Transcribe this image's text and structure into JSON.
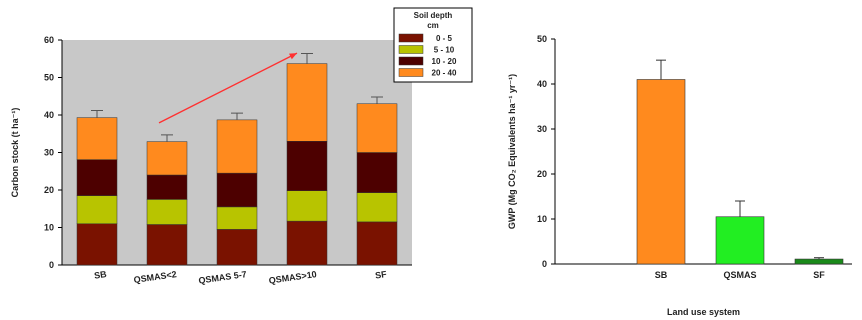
{
  "chart_data": [
    {
      "type": "bar",
      "stacked": true,
      "categories": [
        "SB",
        "QSMAS<2",
        "QSMAS 5-7",
        "QSMAS>10",
        "SF"
      ],
      "series": [
        {
          "name": "0 - 5",
          "color": "#7a1200",
          "values": [
            11,
            10.8,
            9.5,
            11.7,
            11.5
          ]
        },
        {
          "name": "5 - 10",
          "color": "#b8c400",
          "values": [
            7.5,
            6.7,
            6,
            8.1,
            7.8
          ]
        },
        {
          "name": "10 - 20",
          "color": "#4d0000",
          "values": [
            9.6,
            6.5,
            9,
            13.2,
            10.7
          ]
        },
        {
          "name": "20 - 40",
          "color": "#ff8a1e",
          "values": [
            11.2,
            8.9,
            14.2,
            20.7,
            13
          ]
        }
      ],
      "error": [
        1.9,
        1.8,
        1.8,
        2.7,
        1.8
      ],
      "ylabel": "Carbon stock (t ha⁻¹)",
      "ylim": [
        0,
        60
      ],
      "yticks": [
        0,
        10,
        20,
        30,
        40,
        50,
        60
      ],
      "legend_title_1": "Soil depth",
      "legend_title_2": "cm",
      "legend_position": "top-right",
      "plot_background": "#c8c8c8",
      "annotation": "red arrow from QSMAS<2 rising toward QSMAS>10"
    },
    {
      "type": "bar",
      "categories": [
        "SB",
        "QSMAS",
        "SF"
      ],
      "values": [
        41,
        10.5,
        1.1
      ],
      "error": [
        4.3,
        3.5,
        0.3
      ],
      "colors": [
        "#ff8a1e",
        "#22ee22",
        "#1a8a1a"
      ],
      "ylabel": "GWP (Mg CO₂ Equivalents ha⁻¹ yr⁻¹)",
      "xlabel": "Land use system",
      "ylim": [
        0,
        50
      ],
      "yticks": [
        0,
        10,
        20,
        30,
        40,
        50
      ]
    }
  ]
}
